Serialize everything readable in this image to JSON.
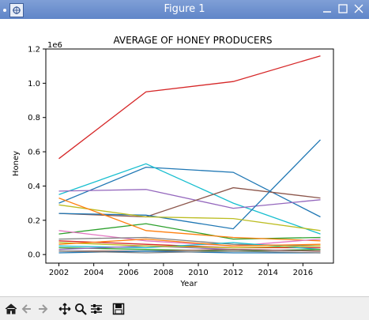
{
  "window": {
    "title": "Figure 1"
  },
  "colors": {
    "titlebar": "#6a8fd0",
    "axis": "#000000"
  },
  "toolbar": {
    "items": [
      {
        "name": "home-icon"
      },
      {
        "name": "back-icon"
      },
      {
        "name": "forward-icon"
      },
      {
        "name": "pan-icon"
      },
      {
        "name": "zoom-icon"
      },
      {
        "name": "configure-subplots-icon"
      },
      {
        "name": "save-icon"
      }
    ]
  },
  "chart_data": {
    "type": "line",
    "title": "AVERAGE OF HONEY PRODUCERS",
    "xlabel": "Year",
    "ylabel": "Honey",
    "y_offset_label": "1e6",
    "xlim": [
      2001.25,
      2017.75
    ],
    "ylim": [
      -0.05,
      1.2
    ],
    "x_ticks": [
      2002,
      2004,
      2006,
      2008,
      2010,
      2012,
      2014,
      2016
    ],
    "y_ticks": [
      0.0,
      0.2,
      0.4,
      0.6,
      0.8,
      1.0,
      1.2
    ],
    "y_tick_labels": [
      "0.0",
      "0.2",
      "0.4",
      "0.6",
      "0.8",
      "1.0",
      "1.2"
    ],
    "grid": false,
    "legend": "none",
    "x": [
      2002,
      2007,
      2012,
      2017
    ],
    "series": [
      {
        "color": "#d62728",
        "values": [
          0.56,
          0.95,
          1.01,
          1.16
        ]
      },
      {
        "color": "#1f77b4",
        "values": [
          0.3,
          0.51,
          0.48,
          0.22
        ]
      },
      {
        "color": "#17becf",
        "values": [
          0.35,
          0.53,
          0.3,
          0.12
        ]
      },
      {
        "color": "#9467bd",
        "values": [
          0.37,
          0.38,
          0.27,
          0.32
        ]
      },
      {
        "color": "#8c564b",
        "values": [
          0.24,
          0.22,
          0.39,
          0.33
        ]
      },
      {
        "color": "#1f77b4",
        "values": [
          0.24,
          0.23,
          0.15,
          0.67
        ]
      },
      {
        "color": "#bcbd22",
        "values": [
          0.29,
          0.22,
          0.21,
          0.14
        ]
      },
      {
        "color": "#2ca02c",
        "values": [
          0.12,
          0.18,
          0.09,
          0.1
        ]
      },
      {
        "color": "#ff7f0e",
        "values": [
          0.33,
          0.14,
          0.1,
          0.08
        ]
      },
      {
        "color": "#e377c2",
        "values": [
          0.14,
          0.08,
          0.05,
          0.09
        ]
      },
      {
        "color": "#7f7f7f",
        "values": [
          0.09,
          0.1,
          0.06,
          0.05
        ]
      },
      {
        "color": "#d62728",
        "values": [
          0.08,
          0.06,
          0.04,
          0.04
        ]
      },
      {
        "color": "#17becf",
        "values": [
          0.05,
          0.04,
          0.07,
          0.03
        ]
      },
      {
        "color": "#2ca02c",
        "values": [
          0.04,
          0.03,
          0.02,
          0.03
        ]
      },
      {
        "color": "#9467bd",
        "values": [
          0.03,
          0.05,
          0.03,
          0.02
        ]
      },
      {
        "color": "#8c564b",
        "values": [
          0.02,
          0.02,
          0.03,
          0.02
        ]
      },
      {
        "color": "#bcbd22",
        "values": [
          0.07,
          0.05,
          0.04,
          0.05
        ]
      },
      {
        "color": "#1f77b4",
        "values": [
          0.01,
          0.02,
          0.01,
          0.01
        ]
      },
      {
        "color": "#ff7f0e",
        "values": [
          0.06,
          0.09,
          0.05,
          0.06
        ]
      },
      {
        "color": "#7f7f7f",
        "values": [
          0.02,
          0.01,
          0.02,
          0.01
        ]
      }
    ]
  }
}
